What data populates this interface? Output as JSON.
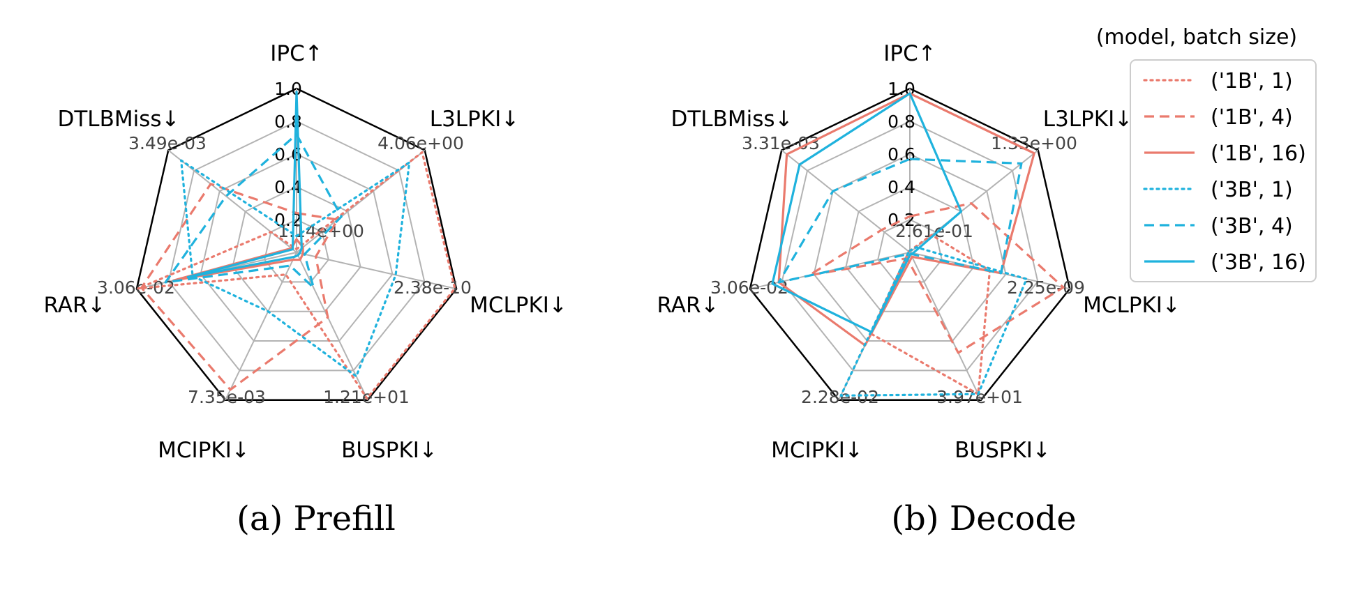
{
  "chart_data": [
    {
      "type": "radar",
      "caption": "(a)  Prefill",
      "axes": [
        "IPC↑",
        "L3LPKI↓",
        "MCLPKI↓",
        "BUSPKI↓",
        "MCIPKI↓",
        "RAR↓",
        "DTLBMiss↓"
      ],
      "axis_max_labels": [
        "1.14e+00",
        "4.06e+00",
        "2.38e-10",
        "1.21e+01",
        "7.35e-03",
        "3.06e-02",
        "3.49e-03"
      ],
      "radial_ticks": [
        "0.2",
        "0.4",
        "0.6",
        "0.8",
        "1.0"
      ],
      "rlim": [
        0,
        1
      ],
      "series": [
        {
          "name": "('1B', 1)",
          "values": [
            0.02,
            0.98,
            0.99,
            0.99,
            0.15,
            0.99,
            0.2
          ]
        },
        {
          "name": "('1B', 4)",
          "values": [
            0.24,
            0.32,
            0.12,
            0.44,
            0.93,
            0.97,
            0.67
          ]
        },
        {
          "name": "('1B', 16)",
          "values": [
            0.08,
            0.05,
            0.04,
            0.05,
            0.05,
            0.77,
            0.04
          ]
        },
        {
          "name": "('3B', 1)",
          "values": [
            0.1,
            0.88,
            0.62,
            0.84,
            0.4,
            0.65,
            0.9
          ]
        },
        {
          "name": "('3B', 4)",
          "values": [
            0.72,
            0.35,
            0.05,
            0.24,
            0.09,
            0.82,
            0.55
          ]
        },
        {
          "name": "('3B', 16)",
          "values": [
            0.98,
            0.04,
            0.02,
            0.02,
            0.03,
            0.68,
            0.03
          ]
        }
      ]
    },
    {
      "type": "radar",
      "caption": "(b)  Decode",
      "axes": [
        "IPC↑",
        "L3LPKI↓",
        "MCLPKI↓",
        "BUSPKI↓",
        "MCIPKI↓",
        "RAR↓",
        "DTLBMiss↓"
      ],
      "axis_max_labels": [
        "2.61e-01",
        "1.33e+00",
        "2.25e-09",
        "3.97e+01",
        "2.28e-02",
        "3.06e-02",
        "3.31e-03"
      ],
      "radial_ticks": [
        "0.2",
        "0.4",
        "0.6",
        "0.8",
        "1.0"
      ],
      "rlim": [
        0,
        1
      ],
      "series": [
        {
          "name": "('1B', 1)",
          "values": [
            0.01,
            0.17,
            0.5,
            0.96,
            0.55,
            0.01,
            0.01
          ]
        },
        {
          "name": "('1B', 4)",
          "values": [
            0.22,
            0.48,
            0.96,
            0.68,
            0.04,
            0.63,
            0.22
          ]
        },
        {
          "name": "('1B', 16)",
          "values": [
            0.97,
            0.97,
            0.57,
            0.03,
            0.63,
            0.82,
            0.96
          ]
        },
        {
          "name": "('3B', 1)",
          "values": [
            0.01,
            0.05,
            0.73,
            0.96,
            0.97,
            0.01,
            0.01
          ]
        },
        {
          "name": "('3B', 4)",
          "values": [
            0.57,
            0.87,
            0.57,
            0.01,
            0.01,
            0.82,
            0.6
          ]
        },
        {
          "name": "('3B', 16)",
          "values": [
            0.97,
            0.4,
            0.02,
            0.01,
            0.54,
            0.86,
            0.86
          ]
        }
      ]
    }
  ],
  "legend": {
    "title": "(model, batch size)",
    "placement": "right",
    "entries": [
      {
        "label": "('1B', 1)",
        "color": "#ea7a6d",
        "style": "dotted"
      },
      {
        "label": "('1B', 4)",
        "color": "#ea7a6d",
        "style": "dashed"
      },
      {
        "label": "('1B', 16)",
        "color": "#ea7a6d",
        "style": "solid"
      },
      {
        "label": "('3B', 1)",
        "color": "#1fb2dd",
        "style": "dotted"
      },
      {
        "label": "('3B', 4)",
        "color": "#1fb2dd",
        "style": "dashed"
      },
      {
        "label": "('3B', 16)",
        "color": "#1fb2dd",
        "style": "solid"
      }
    ]
  },
  "colors": {
    "model_1B": "#ea7a6d",
    "model_3B": "#1fb2dd",
    "grid": "#b3b3b3",
    "outer_frame": "#000000"
  }
}
